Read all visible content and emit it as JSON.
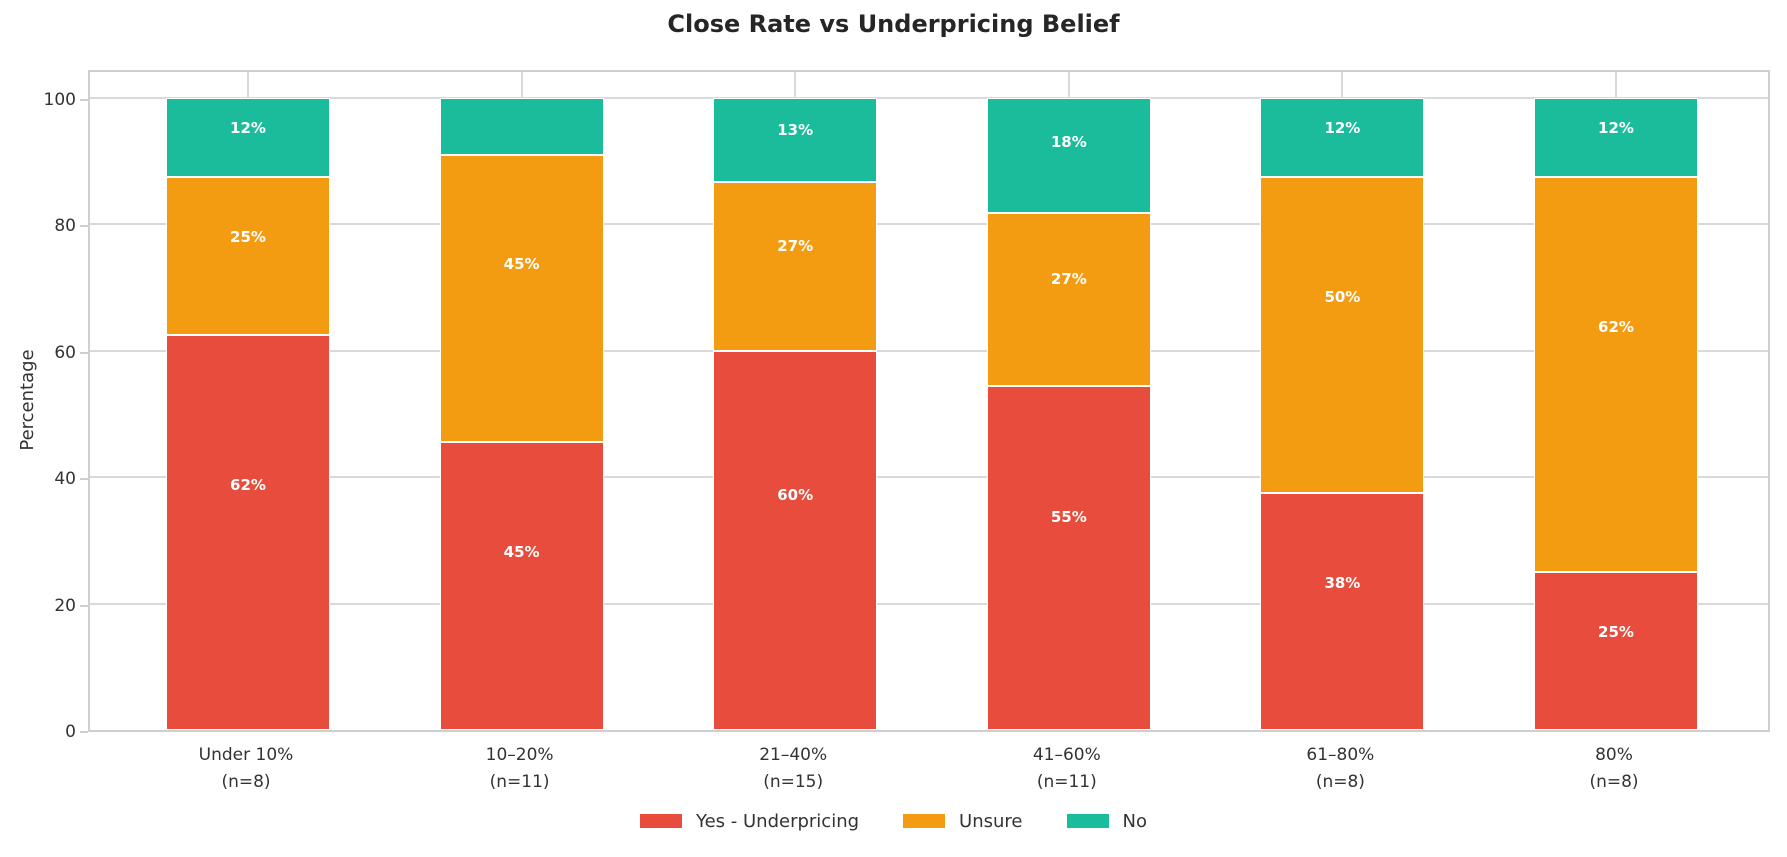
{
  "title": "Close Rate vs Underpricing Belief",
  "colors": {
    "red": "#E74C3C",
    "orange": "#F39C12",
    "teal": "#1ABC9C",
    "grid": "#D9D9D9",
    "spine": "#CFCFCF",
    "title_text": "#262626",
    "tick_text": "#333333",
    "bar_label_text": "#FFFFFF"
  },
  "chart_data": {
    "type": "bar",
    "stacked": true,
    "percent": true,
    "title": "Close Rate vs Underpricing Belief",
    "xlabel": "",
    "ylabel": "Percentage",
    "ylim": [
      0,
      105
    ],
    "yticks": [
      0,
      20,
      40,
      60,
      80,
      100
    ],
    "grid": true,
    "legend_position": "bottom",
    "categories": [
      {
        "label": "Under 10%",
        "n": "(n=8)"
      },
      {
        "label": "10–20%",
        "n": "(n=11)"
      },
      {
        "label": "21–40%",
        "n": "(n=15)"
      },
      {
        "label": "41–60%",
        "n": "(n=11)"
      },
      {
        "label": "61–80%",
        "n": "(n=8)"
      },
      {
        "label": "80%",
        "n": "(n=8)"
      }
    ],
    "series": [
      {
        "name": "Yes - Underpricing",
        "color": "#E74C3C",
        "values": [
          62.5,
          45.5,
          60,
          54.5,
          37.5,
          25
        ],
        "labels": [
          "62%",
          "45%",
          "60%",
          "55%",
          "38%",
          "25%"
        ]
      },
      {
        "name": "Unsure",
        "color": "#F39C12",
        "values": [
          25,
          45.5,
          26.7,
          27.3,
          50,
          62.5
        ],
        "labels": [
          "25%",
          "45%",
          "27%",
          "27%",
          "50%",
          "62%"
        ]
      },
      {
        "name": "No",
        "color": "#1ABC9C",
        "values": [
          12.5,
          9,
          13.3,
          18.2,
          12.5,
          12.5
        ],
        "labels": [
          "12%",
          "",
          "13%",
          "18%",
          "12%",
          "12%"
        ]
      }
    ]
  }
}
